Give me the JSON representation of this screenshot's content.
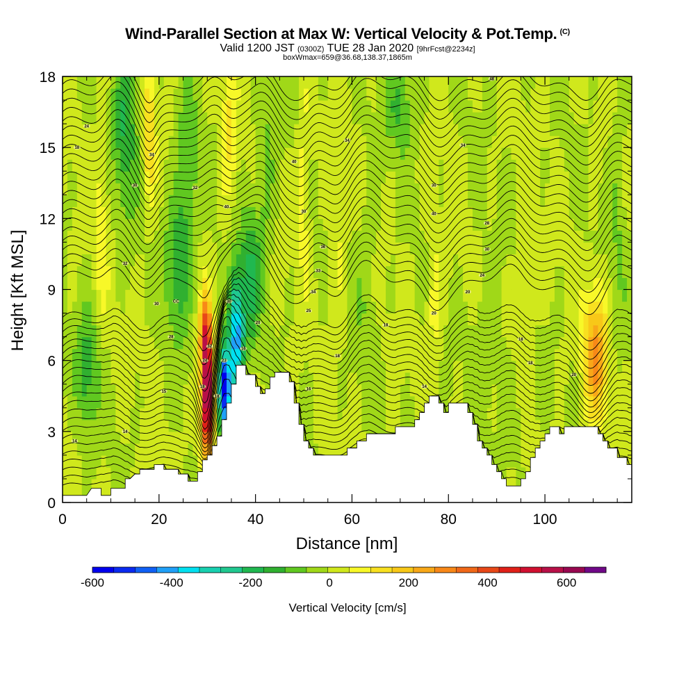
{
  "header": {
    "title": "Wind-Parallel Section at Max W: Vertical Velocity & Pot.Temp.",
    "copyright": "(C)",
    "valid_prefix": "Valid 1200 JST",
    "valid_z": "(0300Z)",
    "valid_date": "TUE 28 Jan 2020",
    "forecast": "[9hrFcst@2234z]",
    "box_info": "boxWmax=659@36.68,138.37,1865m"
  },
  "chart_data": {
    "type": "heatmap",
    "xlabel": "Distance [nm]",
    "ylabel": "Height [Kft MSL]",
    "xlim": [
      0,
      118
    ],
    "ylim": [
      0,
      18
    ],
    "x_ticks": [
      0,
      20,
      40,
      60,
      80,
      100
    ],
    "y_ticks": [
      0,
      3,
      6,
      9,
      12,
      15,
      18
    ],
    "colorbar": {
      "title": "Vertical Velocity [cm/s]",
      "range": [
        -600,
        700
      ],
      "ticks": [
        -600,
        -400,
        -200,
        0,
        200,
        400,
        600
      ],
      "colors": [
        "#0000ee",
        "#0a2af0",
        "#1060f5",
        "#20a0f8",
        "#00e0f0",
        "#18d0b0",
        "#20c890",
        "#20b850",
        "#30b030",
        "#60c820",
        "#a0d818",
        "#d0e81c",
        "#f8f828",
        "#f8e020",
        "#f8c818",
        "#f8a818",
        "#f88818",
        "#f06818",
        "#e84818",
        "#e02018",
        "#d01030",
        "#b81048",
        "#980850",
        "#700888"
      ]
    },
    "terrain_profile": [
      [
        0,
        0.3
      ],
      [
        5,
        0.3
      ],
      [
        6,
        0.6
      ],
      [
        8,
        0.6
      ],
      [
        8,
        0.3
      ],
      [
        10,
        0.3
      ],
      [
        10,
        0.6
      ],
      [
        13,
        0.6
      ],
      [
        13,
        1.0
      ],
      [
        14,
        1.0
      ],
      [
        15,
        1.2
      ],
      [
        16,
        1.2
      ],
      [
        16,
        1.4
      ],
      [
        19,
        1.4
      ],
      [
        19,
        1.6
      ],
      [
        21,
        1.6
      ],
      [
        21,
        1.4
      ],
      [
        24,
        1.4
      ],
      [
        24,
        1.2
      ],
      [
        26,
        1.2
      ],
      [
        26,
        0.9
      ],
      [
        28,
        0.9
      ],
      [
        28,
        1.3
      ],
      [
        29,
        1.3
      ],
      [
        29,
        1.8
      ],
      [
        30,
        1.8
      ],
      [
        30,
        2.0
      ],
      [
        31,
        2.0
      ],
      [
        31,
        2.4
      ],
      [
        32,
        2.4
      ],
      [
        32,
        2.8
      ],
      [
        33,
        2.8
      ],
      [
        33,
        3.5
      ],
      [
        34,
        3.5
      ],
      [
        34,
        4.2
      ],
      [
        35,
        4.2
      ],
      [
        35,
        5.0
      ],
      [
        36,
        5.0
      ],
      [
        36,
        5.8
      ],
      [
        38,
        5.8
      ],
      [
        38,
        5.4
      ],
      [
        40,
        5.4
      ],
      [
        40,
        4.9
      ],
      [
        41,
        4.9
      ],
      [
        41,
        4.6
      ],
      [
        42,
        4.6
      ],
      [
        42,
        4.8
      ],
      [
        43,
        4.8
      ],
      [
        43,
        5.3
      ],
      [
        44,
        5.3
      ],
      [
        44,
        5.5
      ],
      [
        47,
        5.5
      ],
      [
        47,
        5.1
      ],
      [
        48,
        5.1
      ],
      [
        48,
        4.2
      ],
      [
        49,
        4.2
      ],
      [
        49,
        3.3
      ],
      [
        50,
        3.3
      ],
      [
        50,
        2.6
      ],
      [
        51,
        2.6
      ],
      [
        51,
        2.3
      ],
      [
        52,
        2.3
      ],
      [
        52,
        2.0
      ],
      [
        59,
        2.0
      ],
      [
        59,
        2.3
      ],
      [
        61,
        2.3
      ],
      [
        61,
        2.6
      ],
      [
        63,
        2.6
      ],
      [
        63,
        2.9
      ],
      [
        69,
        2.9
      ],
      [
        69,
        3.2
      ],
      [
        73,
        3.2
      ],
      [
        73,
        3.5
      ],
      [
        74,
        3.5
      ],
      [
        74,
        3.8
      ],
      [
        75,
        3.8
      ],
      [
        75,
        4.2
      ],
      [
        76,
        4.2
      ],
      [
        76,
        4.5
      ],
      [
        78,
        4.5
      ],
      [
        78,
        4.2
      ],
      [
        79,
        4.2
      ],
      [
        79,
        3.8
      ],
      [
        80,
        3.8
      ],
      [
        80,
        4.2
      ],
      [
        84,
        4.2
      ],
      [
        84,
        3.8
      ],
      [
        85,
        3.8
      ],
      [
        85,
        3.3
      ],
      [
        86,
        3.3
      ],
      [
        86,
        2.6
      ],
      [
        87,
        2.6
      ],
      [
        87,
        2.3
      ],
      [
        88,
        2.3
      ],
      [
        88,
        2.0
      ],
      [
        89,
        2.0
      ],
      [
        89,
        1.6
      ],
      [
        90,
        1.6
      ],
      [
        90,
        1.3
      ],
      [
        91,
        1.3
      ],
      [
        91,
        1.0
      ],
      [
        92,
        1.0
      ],
      [
        92,
        0.7
      ],
      [
        95,
        0.7
      ],
      [
        95,
        1.0
      ],
      [
        96,
        1.0
      ],
      [
        96,
        1.3
      ],
      [
        97,
        1.3
      ],
      [
        97,
        1.9
      ],
      [
        98,
        1.9
      ],
      [
        98,
        2.3
      ],
      [
        99,
        2.3
      ],
      [
        99,
        2.6
      ],
      [
        100,
        2.6
      ],
      [
        100,
        2.9
      ],
      [
        101,
        2.9
      ],
      [
        101,
        3.2
      ],
      [
        103,
        3.2
      ],
      [
        103,
        2.9
      ],
      [
        104,
        2.9
      ],
      [
        104,
        3.2
      ],
      [
        111,
        3.2
      ],
      [
        111,
        2.9
      ],
      [
        112,
        2.9
      ],
      [
        112,
        2.6
      ],
      [
        113,
        2.6
      ],
      [
        113,
        2.3
      ],
      [
        115,
        2.3
      ],
      [
        115,
        1.9
      ],
      [
        117,
        1.9
      ],
      [
        117,
        1.6
      ],
      [
        118,
        1.6
      ]
    ],
    "velocity_features": [
      {
        "x": 30,
        "y": 4.5,
        "sx": 1.3,
        "sy": 2.6,
        "w": 680
      },
      {
        "x": 29.5,
        "y": 7.2,
        "sx": 1.2,
        "sy": 1.6,
        "w": 280
      },
      {
        "x": 33.5,
        "y": 4.8,
        "sx": 1.3,
        "sy": 1.8,
        "w": -600
      },
      {
        "x": 36,
        "y": 7.0,
        "sx": 1.6,
        "sy": 2.6,
        "w": -420
      },
      {
        "x": 39,
        "y": 9.5,
        "sx": 2.0,
        "sy": 2.8,
        "w": -180
      },
      {
        "x": 110.5,
        "y": 6.3,
        "sx": 2.4,
        "sy": 2.6,
        "w": 280
      },
      {
        "x": 18,
        "y": 15.8,
        "sx": 1.2,
        "sy": 3.2,
        "w": 160
      },
      {
        "x": 34.5,
        "y": 15.5,
        "sx": 1.5,
        "sy": 3.0,
        "w": 120
      },
      {
        "x": 50,
        "y": 13.5,
        "sx": 1.2,
        "sy": 3.5,
        "w": 100
      },
      {
        "x": 13,
        "y": 16,
        "sx": 2.5,
        "sy": 3.5,
        "w": -170
      },
      {
        "x": 24,
        "y": 10.0,
        "sx": 2.8,
        "sy": 3.0,
        "w": -160
      },
      {
        "x": 26,
        "y": 14.5,
        "sx": 2.0,
        "sy": 3.5,
        "w": -110
      },
      {
        "x": 5,
        "y": 5.5,
        "sx": 2.5,
        "sy": 2.5,
        "w": -140
      },
      {
        "x": 70,
        "y": 16.8,
        "sx": 3.0,
        "sy": 2.0,
        "w": -120
      },
      {
        "x": 63,
        "y": 9,
        "sx": 2.5,
        "sy": 4,
        "w": -50
      },
      {
        "x": 88,
        "y": 7,
        "sx": 3,
        "sy": 3,
        "w": -60
      },
      {
        "x": 93,
        "y": 3.5,
        "sx": 2,
        "sy": 2,
        "w": -50
      },
      {
        "x": 77,
        "y": 8.5,
        "sx": 1.5,
        "sy": 3,
        "w": 80
      },
      {
        "x": 96,
        "y": 8.5,
        "sx": 1.5,
        "sy": 3,
        "w": 60
      },
      {
        "x": 115,
        "y": 12,
        "sx": 2,
        "sy": 5,
        "w": -60
      },
      {
        "x": 42,
        "y": 14,
        "sx": 2,
        "sy": 4,
        "w": -80
      },
      {
        "x": 57,
        "y": 11,
        "sx": 1.5,
        "sy": 4,
        "w": 60
      },
      {
        "x": 8,
        "y": 12,
        "sx": 1.5,
        "sy": 4,
        "w": 80
      }
    ],
    "contour_labels": [
      {
        "text": "24",
        "x": 5,
        "y": 15.9
      },
      {
        "text": "18",
        "x": 3,
        "y": 15.0
      },
      {
        "text": "34",
        "x": 18.5,
        "y": 14.7
      },
      {
        "text": "30",
        "x": 15,
        "y": 13.4
      },
      {
        "text": "32",
        "x": 27.5,
        "y": 13.3
      },
      {
        "text": "40",
        "x": 34,
        "y": 12.5
      },
      {
        "text": "40",
        "x": 48,
        "y": 14.4
      },
      {
        "text": "34",
        "x": 59,
        "y": 15.3
      },
      {
        "text": "34",
        "x": 83,
        "y": 15.1
      },
      {
        "text": "48",
        "x": 89,
        "y": 17.9
      },
      {
        "text": "30",
        "x": 77,
        "y": 13.4
      },
      {
        "text": "40",
        "x": 77,
        "y": 12.2
      },
      {
        "text": "28",
        "x": 88,
        "y": 11.8
      },
      {
        "text": "30",
        "x": 50,
        "y": 12.3
      },
      {
        "text": "36",
        "x": 54,
        "y": 10.8
      },
      {
        "text": "33",
        "x": 53,
        "y": 9.8
      },
      {
        "text": "34",
        "x": 52,
        "y": 8.9
      },
      {
        "text": "25",
        "x": 51,
        "y": 8.1
      },
      {
        "text": "30",
        "x": 88,
        "y": 10.7
      },
      {
        "text": "24",
        "x": 87,
        "y": 9.6
      },
      {
        "text": "20",
        "x": 84,
        "y": 8.9
      },
      {
        "text": "20",
        "x": 77,
        "y": 8.0
      },
      {
        "text": "18",
        "x": 67,
        "y": 7.5
      },
      {
        "text": "18",
        "x": 95,
        "y": 6.9
      },
      {
        "text": "18",
        "x": 97,
        "y": 5.9
      },
      {
        "text": "18",
        "x": 57,
        "y": 6.2
      },
      {
        "text": "20",
        "x": 106,
        "y": 5.4
      },
      {
        "text": "14",
        "x": 75,
        "y": 4.9
      },
      {
        "text": "16",
        "x": 51,
        "y": 4.8
      },
      {
        "text": "32",
        "x": 13,
        "y": 10.1
      },
      {
        "text": "30",
        "x": 19.5,
        "y": 8.4
      },
      {
        "text": "CC",
        "x": 23.5,
        "y": 8.5
      },
      {
        "text": "28",
        "x": 22.5,
        "y": 7.0
      },
      {
        "text": "15",
        "x": 21,
        "y": 4.7
      },
      {
        "text": "14",
        "x": 13,
        "y": 3.0
      },
      {
        "text": "14",
        "x": 2.5,
        "y": 2.6
      },
      {
        "text": "32",
        "x": 30.5,
        "y": 6.6
      },
      {
        "text": "24",
        "x": 29.5,
        "y": 6.0
      },
      {
        "text": "23",
        "x": 33.5,
        "y": 6.0
      },
      {
        "text": "18",
        "x": 29,
        "y": 4.9
      },
      {
        "text": "18",
        "x": 32,
        "y": 4.5
      },
      {
        "text": "16",
        "x": 37.5,
        "y": 6.5
      },
      {
        "text": "20",
        "x": 40.5,
        "y": 7.6
      },
      {
        "text": "30",
        "x": 34.5,
        "y": 8.5
      }
    ]
  }
}
